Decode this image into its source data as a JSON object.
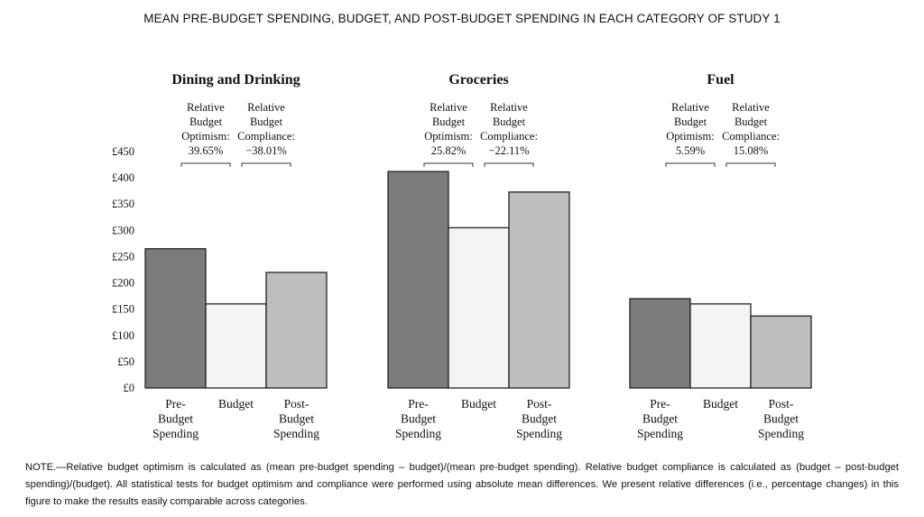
{
  "figure_title": "MEAN PRE-BUDGET SPENDING, BUDGET, AND POST-BUDGET SPENDING IN EACH CATEGORY OF STUDY 1",
  "note": "NOTE.—Relative budget optimism is calculated as (mean pre-budget spending – budget)/(mean pre-budget spending). Relative budget compliance is calculated as (budget – post-budget spending)/(budget). All statistical tests for budget optimism and compliance were performed using absolute mean differences. We present relative differences (i.e., percentage changes) in this figure to make the results easily comparable across categories.",
  "colors": {
    "pre": "#7c7c7c",
    "budget": "#f4f4f4",
    "post": "#bebebe",
    "stroke": "#222222"
  },
  "chart_data": {
    "type": "bar",
    "title": "",
    "xlabel": "",
    "ylabel": "",
    "ylim": [
      0,
      450
    ],
    "yticks": [
      0,
      50,
      100,
      150,
      200,
      250,
      300,
      350,
      400,
      450
    ],
    "ytick_labels": [
      "£0",
      "£50",
      "£100",
      "£150",
      "£200",
      "£250",
      "£300",
      "£350",
      "£400",
      "£450"
    ],
    "bar_labels": [
      [
        "Pre-",
        "Budget",
        "Spending"
      ],
      [
        "Budget"
      ],
      [
        "Post-",
        "Budget",
        "Spending"
      ]
    ],
    "panels": [
      {
        "name": "Dining and Drinking",
        "values": [
          265,
          160,
          220
        ],
        "optimism": {
          "lines": [
            "Relative",
            "Budget",
            "Optimism:",
            "39.65%"
          ]
        },
        "compliance": {
          "lines": [
            "Relative",
            "Budget",
            "Compliance:",
            "−38.01%"
          ]
        }
      },
      {
        "name": "Groceries",
        "values": [
          412,
          305,
          373
        ],
        "optimism": {
          "lines": [
            "Relative",
            "Budget",
            "Optimism:",
            "25.82%"
          ]
        },
        "compliance": {
          "lines": [
            "Relative",
            "Budget",
            "Compliance:",
            "−22.11%"
          ]
        }
      },
      {
        "name": "Fuel",
        "values": [
          170,
          160,
          137
        ],
        "optimism": {
          "lines": [
            "Relative",
            "Budget",
            "Optimism:",
            "5.59%"
          ]
        },
        "compliance": {
          "lines": [
            "Relative",
            "Budget",
            "Compliance:",
            "15.08%"
          ]
        }
      }
    ]
  }
}
